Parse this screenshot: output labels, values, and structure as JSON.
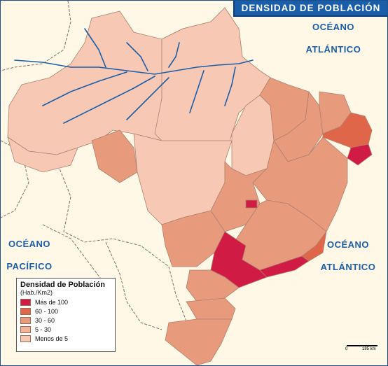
{
  "title": "DENSIDAD DE POBLACIÓN",
  "oceans": {
    "atlantic_top": [
      "OCÉANO",
      "ATLÁNTICO"
    ],
    "pacific": [
      "OCÉANO",
      "PACÍFICO"
    ],
    "atlantic_right": [
      "OCÉANO",
      "ATLÁNTICO"
    ]
  },
  "legend": {
    "title": "Densidad de Población",
    "unit": "(Hab./Km2)",
    "items": [
      {
        "label": "Más de 100",
        "color": "#d01c44"
      },
      {
        "label": "60 - 100",
        "color": "#e0664a"
      },
      {
        "label": "30 - 60",
        "color": "#e89a7c"
      },
      {
        "label": "5 - 30",
        "color": "#f0b49a"
      },
      {
        "label": "Menos de 5",
        "color": "#f7c9b4"
      }
    ]
  },
  "scale": {
    "left": "0",
    "right": "185 km"
  },
  "colors": {
    "background": "#fff8e6",
    "river": "#1a5eaa",
    "state_border": "#b08070",
    "country_border": "#8a6a5a"
  }
}
